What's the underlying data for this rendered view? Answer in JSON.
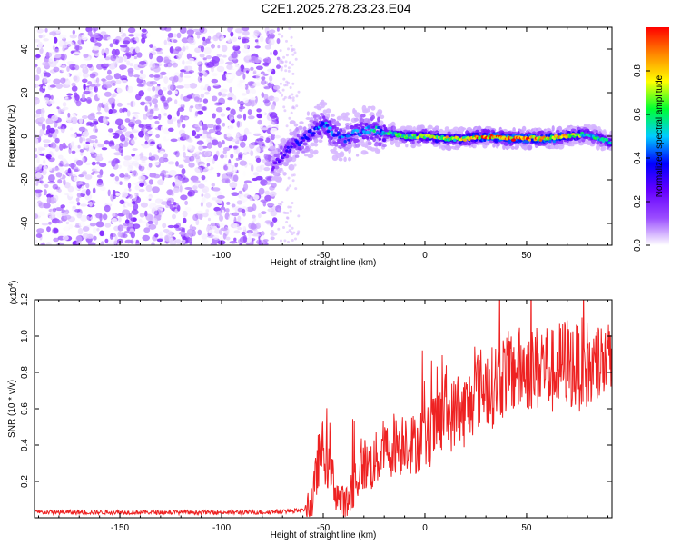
{
  "title": "C2E1.2025.278.23.23.E04",
  "colors": {
    "snr_line": "#ee2222",
    "axis": "#000000",
    "background": "#ffffff"
  },
  "chart_data": [
    {
      "type": "heatmap",
      "xlabel": "Height of straight line (km)",
      "ylabel": "Frequency (Hz)",
      "xlim": [
        -192,
        92
      ],
      "ylim": [
        -50,
        50
      ],
      "x_ticks": [
        "-150",
        "-100",
        "-50",
        "0",
        "50"
      ],
      "y_ticks": [
        "40",
        "20",
        "0",
        "-20",
        "-40"
      ],
      "colorbar": {
        "label": "Normalized spectral amplitude",
        "range": [
          0,
          1
        ],
        "ticks": [
          "0.0",
          "0.2",
          "0.4",
          "0.6",
          "0.8"
        ],
        "colormap": [
          "#ffffff",
          "#9a4dff",
          "#6600ff",
          "#0000ff",
          "#00ccff",
          "#00ff33",
          "#ffff00",
          "#ff8800",
          "#ff0000"
        ]
      },
      "noise_region_x": [
        -192,
        -72
      ],
      "ridge": [
        {
          "x": -75,
          "y": -14
        },
        {
          "x": -70,
          "y": -8
        },
        {
          "x": -65,
          "y": -4
        },
        {
          "x": -60,
          "y": -2
        },
        {
          "x": -55,
          "y": 2
        },
        {
          "x": -50,
          "y": 6
        },
        {
          "x": -45,
          "y": 1
        },
        {
          "x": -40,
          "y": -1
        },
        {
          "x": -30,
          "y": 3
        },
        {
          "x": -20,
          "y": 2
        },
        {
          "x": -10,
          "y": 0
        },
        {
          "x": 0,
          "y": 0
        },
        {
          "x": 10,
          "y": -1
        },
        {
          "x": 20,
          "y": -1
        },
        {
          "x": 30,
          "y": 0
        },
        {
          "x": 40,
          "y": -1
        },
        {
          "x": 50,
          "y": -1
        },
        {
          "x": 60,
          "y": -1
        },
        {
          "x": 70,
          "y": 0
        },
        {
          "x": 80,
          "y": 1
        },
        {
          "x": 92,
          "y": -3
        }
      ],
      "ridge_amplitude": [
        {
          "x": -75,
          "a": 0.25
        },
        {
          "x": -60,
          "a": 0.35
        },
        {
          "x": -50,
          "a": 0.45
        },
        {
          "x": -35,
          "a": 0.4
        },
        {
          "x": -20,
          "a": 0.55
        },
        {
          "x": 0,
          "a": 0.7
        },
        {
          "x": 20,
          "a": 0.75
        },
        {
          "x": 30,
          "a": 0.9
        },
        {
          "x": 50,
          "a": 0.9
        },
        {
          "x": 65,
          "a": 0.85
        },
        {
          "x": 80,
          "a": 0.6
        },
        {
          "x": 92,
          "a": 0.5
        }
      ]
    },
    {
      "type": "line",
      "xlabel": "Height of straight line (km)",
      "ylabel": "SNR (10 * v/v)",
      "y_multiplier": "(x10",
      "y_multiplier_exp": "4",
      "y_multiplier_close": ")",
      "xlim": [
        -192,
        92
      ],
      "ylim": [
        0,
        1.2
      ],
      "x_ticks": [
        "-150",
        "-100",
        "-50",
        "0",
        "50"
      ],
      "y_ticks": [
        "0.2",
        "0.4",
        "0.6",
        "0.8",
        "1.0",
        "1.2"
      ],
      "series": [
        {
          "x": [
            -192,
            -150,
            -100,
            -80,
            -60,
            -55,
            -52,
            -50,
            -48,
            -45,
            -42,
            -40,
            -38,
            -35,
            -32,
            -30,
            -28,
            -25,
            -22,
            -20,
            -18,
            -15,
            -12,
            -10,
            -8,
            -5,
            -2,
            0,
            2,
            5,
            8,
            10,
            12,
            15,
            18,
            20,
            22,
            25,
            28,
            30,
            32,
            35,
            38,
            40,
            42,
            45,
            48,
            50,
            52,
            55,
            58,
            60,
            62,
            65,
            68,
            70,
            72,
            75,
            78,
            80,
            82,
            85,
            88,
            90,
            92
          ],
          "y": [
            0.03,
            0.03,
            0.03,
            0.03,
            0.04,
            0.1,
            0.35,
            0.38,
            0.3,
            0.2,
            0.1,
            0.06,
            0.08,
            0.2,
            0.25,
            0.3,
            0.28,
            0.3,
            0.35,
            0.38,
            0.36,
            0.42,
            0.4,
            0.45,
            0.42,
            0.4,
            0.44,
            0.42,
            0.45,
            0.5,
            0.55,
            0.6,
            0.55,
            0.58,
            0.56,
            0.6,
            0.62,
            0.7,
            0.72,
            0.74,
            0.7,
            0.75,
            0.78,
            0.8,
            0.78,
            0.82,
            0.8,
            0.83,
            0.84,
            0.82,
            0.86,
            0.84,
            0.8,
            0.82,
            0.85,
            0.86,
            0.84,
            0.82,
            0.86,
            0.84,
            0.8,
            0.82,
            0.86,
            0.84,
            0.8
          ]
        }
      ]
    }
  ]
}
